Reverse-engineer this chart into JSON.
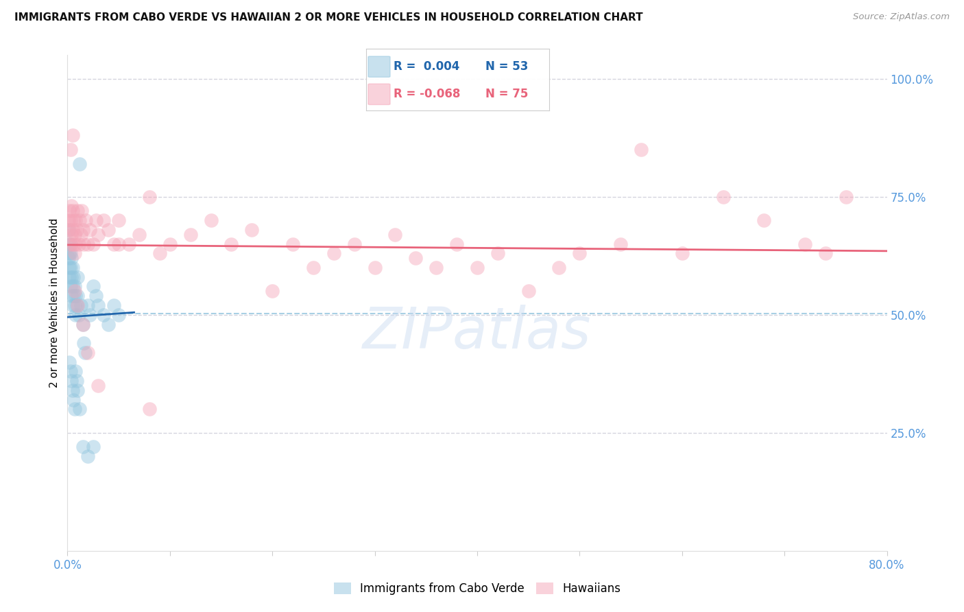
{
  "title": "IMMIGRANTS FROM CABO VERDE VS HAWAIIAN 2 OR MORE VEHICLES IN HOUSEHOLD CORRELATION CHART",
  "source": "Source: ZipAtlas.com",
  "ylabel": "2 or more Vehicles in Household",
  "legend_blue_label": "Immigrants from Cabo Verde",
  "legend_pink_label": "Hawaiians",
  "blue_color": "#92c5de",
  "pink_color": "#f4a6b8",
  "trend_blue_color": "#2166ac",
  "trend_pink_color": "#e8637a",
  "dashed_line_color": "#92c5de",
  "grid_color": "#b8b8c8",
  "blue_r": 0.004,
  "blue_n": 53,
  "pink_r": -0.068,
  "pink_n": 75,
  "blue_x": [
    0.001,
    0.001,
    0.002,
    0.002,
    0.002,
    0.002,
    0.003,
    0.003,
    0.003,
    0.003,
    0.004,
    0.004,
    0.004,
    0.005,
    0.005,
    0.005,
    0.006,
    0.006,
    0.007,
    0.007,
    0.008,
    0.008,
    0.009,
    0.01,
    0.01,
    0.011,
    0.012,
    0.013,
    0.015,
    0.016,
    0.017,
    0.02,
    0.022,
    0.025,
    0.028,
    0.03,
    0.035,
    0.04,
    0.045,
    0.05,
    0.002,
    0.003,
    0.004,
    0.005,
    0.006,
    0.007,
    0.008,
    0.009,
    0.01,
    0.012,
    0.015,
    0.02,
    0.025
  ],
  "blue_y": [
    0.68,
    0.62,
    0.65,
    0.63,
    0.6,
    0.58,
    0.65,
    0.63,
    0.6,
    0.56,
    0.62,
    0.58,
    0.54,
    0.6,
    0.56,
    0.52,
    0.58,
    0.54,
    0.56,
    0.52,
    0.54,
    0.5,
    0.52,
    0.58,
    0.54,
    0.5,
    0.82,
    0.52,
    0.48,
    0.44,
    0.42,
    0.52,
    0.5,
    0.56,
    0.54,
    0.52,
    0.5,
    0.48,
    0.52,
    0.5,
    0.4,
    0.38,
    0.36,
    0.34,
    0.32,
    0.3,
    0.38,
    0.36,
    0.34,
    0.3,
    0.22,
    0.2,
    0.22
  ],
  "pink_x": [
    0.001,
    0.002,
    0.002,
    0.003,
    0.003,
    0.004,
    0.004,
    0.005,
    0.005,
    0.006,
    0.006,
    0.007,
    0.007,
    0.008,
    0.008,
    0.009,
    0.01,
    0.011,
    0.012,
    0.013,
    0.014,
    0.015,
    0.016,
    0.018,
    0.02,
    0.022,
    0.025,
    0.028,
    0.03,
    0.035,
    0.04,
    0.045,
    0.05,
    0.06,
    0.07,
    0.08,
    0.09,
    0.1,
    0.12,
    0.14,
    0.16,
    0.18,
    0.2,
    0.22,
    0.24,
    0.26,
    0.28,
    0.3,
    0.32,
    0.34,
    0.36,
    0.38,
    0.4,
    0.42,
    0.45,
    0.48,
    0.5,
    0.54,
    0.56,
    0.6,
    0.64,
    0.68,
    0.72,
    0.74,
    0.76,
    0.003,
    0.005,
    0.007,
    0.01,
    0.015,
    0.02,
    0.03,
    0.05,
    0.08
  ],
  "pink_y": [
    0.7,
    0.72,
    0.68,
    0.7,
    0.65,
    0.73,
    0.67,
    0.68,
    0.72,
    0.7,
    0.65,
    0.67,
    0.63,
    0.7,
    0.65,
    0.68,
    0.72,
    0.65,
    0.7,
    0.67,
    0.72,
    0.68,
    0.65,
    0.7,
    0.65,
    0.68,
    0.65,
    0.7,
    0.67,
    0.7,
    0.68,
    0.65,
    0.7,
    0.65,
    0.67,
    0.75,
    0.63,
    0.65,
    0.67,
    0.7,
    0.65,
    0.68,
    0.55,
    0.65,
    0.6,
    0.63,
    0.65,
    0.6,
    0.67,
    0.62,
    0.6,
    0.65,
    0.6,
    0.63,
    0.55,
    0.6,
    0.63,
    0.65,
    0.85,
    0.63,
    0.75,
    0.7,
    0.65,
    0.63,
    0.75,
    0.85,
    0.88,
    0.55,
    0.52,
    0.48,
    0.42,
    0.35,
    0.65,
    0.3
  ],
  "xlim": [
    0,
    0.8
  ],
  "ylim": [
    0,
    1.05
  ],
  "ytick_positions": [
    0.0,
    0.25,
    0.5,
    0.75,
    1.0
  ],
  "ytick_labels": [
    "",
    "25.0%",
    "50.0%",
    "75.0%",
    "100.0%"
  ],
  "xtick_positions": [
    0.0,
    0.1,
    0.2,
    0.3,
    0.4,
    0.5,
    0.6,
    0.7,
    0.8
  ],
  "watermark_text": "ZIPatlas",
  "watermark_color": "#c8daf0",
  "pink_trend_x_start": 0.0,
  "pink_trend_x_end": 0.8,
  "pink_trend_y_start": 0.648,
  "pink_trend_y_end": 0.635,
  "blue_trend_x_start": 0.0,
  "blue_trend_x_end": 0.065,
  "blue_trend_y_start": 0.495,
  "blue_trend_y_end": 0.505,
  "dashed_line_y": 0.502
}
